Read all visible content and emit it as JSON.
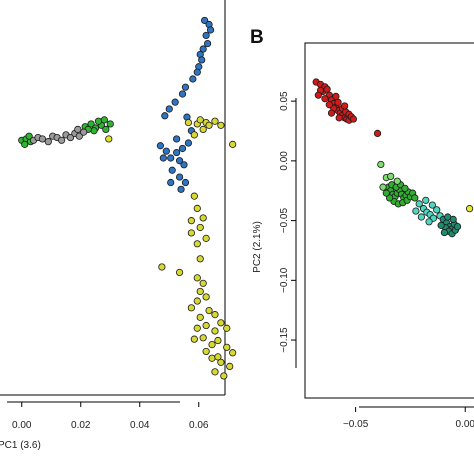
{
  "chart_data": [
    {
      "type": "scatter",
      "panel_label": "",
      "xlabel": "PC1 (3.6)",
      "ylabel": "",
      "xlim": [
        -0.005,
        0.075
      ],
      "ylim": [
        -0.2,
        0.09
      ],
      "x_ticks": [
        "0.00",
        "0.02",
        "0.04",
        "0.06"
      ],
      "x_tick_values": [
        0.0,
        0.02,
        0.04,
        0.06
      ],
      "y_ticks": [],
      "grid": false,
      "series": [
        {
          "color": "#2e74c0",
          "points": [
            [
              0.062,
              0.075
            ],
            [
              0.0635,
              0.072
            ],
            [
              0.064,
              0.068
            ],
            [
              0.0625,
              0.064
            ],
            [
              0.063,
              0.058
            ],
            [
              0.0615,
              0.054
            ],
            [
              0.0605,
              0.05
            ],
            [
              0.061,
              0.046
            ],
            [
              0.06,
              0.041
            ],
            [
              0.0595,
              0.037
            ],
            [
              0.058,
              0.032
            ],
            [
              0.0555,
              0.026
            ],
            [
              0.0545,
              0.021
            ],
            [
              0.052,
              0.015
            ],
            [
              0.05,
              0.01
            ],
            [
              0.0485,
              0.005
            ],
            [
              0.056,
              0.004
            ],
            [
              0.0575,
              -0.006
            ],
            [
              0.0565,
              -0.015
            ],
            [
              0.0545,
              -0.019
            ],
            [
              0.0525,
              -0.022
            ],
            [
              0.0505,
              -0.026
            ],
            [
              0.049,
              -0.021
            ],
            [
              0.0535,
              -0.028
            ],
            [
              0.055,
              -0.031
            ],
            [
              0.047,
              -0.017
            ],
            [
              0.051,
              -0.035
            ],
            [
              0.0535,
              -0.04
            ],
            [
              0.0555,
              -0.044
            ],
            [
              0.054,
              -0.049
            ],
            [
              0.0505,
              -0.044
            ],
            [
              0.0525,
              -0.012
            ],
            [
              0.048,
              -0.026
            ]
          ]
        },
        {
          "color": "#d8d832",
          "points": [
            [
              0.0565,
              0.0
            ],
            [
              0.0595,
              -0.001
            ],
            [
              0.0625,
              0.0
            ],
            [
              0.0655,
              0.001
            ],
            [
              0.0605,
              0.002
            ],
            [
              0.0635,
              -0.002
            ],
            [
              0.0585,
              -0.009
            ],
            [
              0.0615,
              -0.005
            ],
            [
              0.0675,
              -0.002
            ],
            [
              0.0715,
              -0.016
            ],
            [
              0.0575,
              -0.072
            ],
            [
              0.0595,
              -0.063
            ],
            [
              0.0585,
              -0.054
            ],
            [
              0.0575,
              -0.081
            ],
            [
              0.0605,
              -0.077
            ],
            [
              0.0615,
              -0.07
            ],
            [
              0.0595,
              -0.089
            ],
            [
              0.0625,
              -0.085
            ],
            [
              0.0605,
              -0.1
            ],
            [
              0.0475,
              -0.106
            ],
            [
              0.0535,
              -0.11
            ],
            [
              0.0595,
              -0.114
            ],
            [
              0.0615,
              -0.118
            ],
            [
              0.0605,
              -0.124
            ],
            [
              0.0595,
              -0.131
            ],
            [
              0.0625,
              -0.128
            ],
            [
              0.0575,
              -0.136
            ],
            [
              0.0605,
              -0.143
            ],
            [
              0.0635,
              -0.138
            ],
            [
              0.0655,
              -0.141
            ],
            [
              0.0595,
              -0.151
            ],
            [
              0.0625,
              -0.149
            ],
            [
              0.0655,
              -0.153
            ],
            [
              0.0675,
              -0.147
            ],
            [
              0.0695,
              -0.151
            ],
            [
              0.0615,
              -0.158
            ],
            [
              0.0645,
              -0.163
            ],
            [
              0.0665,
              -0.16
            ],
            [
              0.0695,
              -0.165
            ],
            [
              0.0715,
              -0.169
            ],
            [
              0.0645,
              -0.173
            ],
            [
              0.0675,
              -0.176
            ],
            [
              0.0705,
              -0.179
            ],
            [
              0.0655,
              -0.183
            ],
            [
              0.0685,
              -0.186
            ],
            [
              0.0665,
              -0.172
            ],
            [
              0.0625,
              -0.168
            ],
            [
              0.0585,
              -0.159
            ]
          ]
        },
        {
          "color": "#2fb52f",
          "points": [
            [
              0.0,
              -0.013
            ],
            [
              0.0015,
              -0.012
            ],
            [
              0.003,
              -0.014
            ],
            [
              0.001,
              -0.016
            ],
            [
              0.0025,
              -0.01
            ],
            [
              0.0215,
              -0.003
            ],
            [
              0.0235,
              -0.001
            ],
            [
              0.025,
              -0.004
            ],
            [
              0.027,
              -0.002
            ],
            [
              0.0285,
              -0.005
            ],
            [
              0.03,
              -0.001
            ],
            [
              0.026,
              0.001
            ],
            [
              0.028,
              0.002
            ],
            [
              0.0245,
              -0.006
            ],
            [
              0.0225,
              -0.005
            ]
          ]
        },
        {
          "color": "#9a9a9a",
          "points": [
            [
              0.004,
              -0.013
            ],
            [
              0.0055,
              -0.011
            ],
            [
              0.007,
              -0.012
            ],
            [
              0.009,
              -0.014
            ],
            [
              0.0105,
              -0.01
            ],
            [
              0.012,
              -0.011
            ],
            [
              0.0135,
              -0.013
            ],
            [
              0.015,
              -0.009
            ],
            [
              0.0165,
              -0.011
            ],
            [
              0.018,
              -0.008
            ],
            [
              0.0195,
              -0.01
            ],
            [
              0.021,
              -0.007
            ],
            [
              0.019,
              -0.005
            ]
          ]
        },
        {
          "color": "#e2e22a",
          "points": [
            [
              0.0295,
              -0.012
            ]
          ]
        }
      ]
    },
    {
      "type": "scatter",
      "panel_label": "B",
      "xlabel": "",
      "ylabel": "PC2 (2.1%)",
      "xlim": [
        -0.074,
        0.004
      ],
      "ylim": [
        -0.196,
        0.097
      ],
      "x_ticks": [
        "−0.05",
        "0.00"
      ],
      "x_tick_values": [
        -0.05,
        0.0
      ],
      "y_ticks": [
        "0.05",
        "0.00",
        "−0.05",
        "−0.10",
        "−0.15"
      ],
      "y_tick_values": [
        0.05,
        0.0,
        -0.05,
        -0.1,
        -0.15
      ],
      "grid": false,
      "series": [
        {
          "color": "#d11a1a",
          "points": [
            [
              -0.068,
              0.066
            ],
            [
              -0.066,
              0.064
            ],
            [
              -0.064,
              0.062
            ],
            [
              -0.065,
              0.058
            ],
            [
              -0.063,
              0.06
            ],
            [
              -0.062,
              0.055
            ],
            [
              -0.061,
              0.051
            ],
            [
              -0.06,
              0.048
            ],
            [
              -0.059,
              0.045
            ],
            [
              -0.058,
              0.042
            ],
            [
              -0.057,
              0.04
            ],
            [
              -0.056,
              0.038
            ],
            [
              -0.055,
              0.036
            ],
            [
              -0.054,
              0.035
            ],
            [
              -0.053,
              0.034
            ],
            [
              -0.06,
              0.044
            ],
            [
              -0.062,
              0.047
            ],
            [
              -0.064,
              0.052
            ],
            [
              -0.058,
              0.049
            ],
            [
              -0.056,
              0.044
            ],
            [
              -0.0575,
              0.036
            ],
            [
              -0.0545,
              0.041
            ],
            [
              -0.053,
              0.039
            ],
            [
              -0.061,
              0.04
            ],
            [
              -0.066,
              0.059
            ],
            [
              -0.067,
              0.055
            ],
            [
              -0.059,
              0.054
            ],
            [
              -0.055,
              0.046
            ],
            [
              -0.052,
              0.037
            ],
            [
              -0.051,
              0.035
            ],
            [
              -0.04,
              0.023
            ]
          ]
        },
        {
          "color": "#2fae2f",
          "points": [
            [
              -0.035,
              -0.022
            ],
            [
              -0.034,
              -0.025
            ],
            [
              -0.033,
              -0.028
            ],
            [
              -0.032,
              -0.03
            ],
            [
              -0.031,
              -0.027
            ],
            [
              -0.03,
              -0.024
            ],
            [
              -0.029,
              -0.028
            ],
            [
              -0.028,
              -0.031
            ],
            [
              -0.027,
              -0.029
            ],
            [
              -0.026,
              -0.026
            ],
            [
              -0.0325,
              -0.034
            ],
            [
              -0.0305,
              -0.036
            ],
            [
              -0.0285,
              -0.035
            ],
            [
              -0.0265,
              -0.033
            ],
            [
              -0.025,
              -0.03
            ],
            [
              -0.0345,
              -0.031
            ],
            [
              -0.0335,
              -0.02
            ],
            [
              -0.0315,
              -0.022
            ],
            [
              -0.0295,
              -0.02
            ],
            [
              -0.036,
              -0.027
            ],
            [
              -0.0275,
              -0.023
            ],
            [
              -0.024,
              -0.027
            ],
            [
              -0.023,
              -0.031
            ]
          ]
        },
        {
          "color": "#7fdc6f",
          "points": [
            [
              -0.0385,
              -0.003
            ],
            [
              -0.036,
              -0.014
            ],
            [
              -0.034,
              -0.013
            ],
            [
              -0.031,
              -0.017
            ],
            [
              -0.0375,
              -0.022
            ]
          ]
        },
        {
          "color": "#4ed6c0",
          "points": [
            [
              -0.021,
              -0.036
            ],
            [
              -0.019,
              -0.04
            ],
            [
              -0.0175,
              -0.043
            ],
            [
              -0.016,
              -0.045
            ],
            [
              -0.0145,
              -0.048
            ],
            [
              -0.018,
              -0.033
            ],
            [
              -0.015,
              -0.037
            ],
            [
              -0.013,
              -0.041
            ],
            [
              -0.02,
              -0.047
            ],
            [
              -0.0225,
              -0.042
            ],
            [
              -0.0115,
              -0.046
            ],
            [
              -0.0165,
              -0.051
            ]
          ]
        },
        {
          "color": "#1e8a6e",
          "points": [
            [
              -0.01,
              -0.049
            ],
            [
              -0.0085,
              -0.052
            ],
            [
              -0.007,
              -0.055
            ],
            [
              -0.006,
              -0.057
            ],
            [
              -0.005,
              -0.053
            ],
            [
              -0.009,
              -0.056
            ],
            [
              -0.0075,
              -0.059
            ],
            [
              -0.006,
              -0.061
            ],
            [
              -0.0045,
              -0.058
            ],
            [
              -0.011,
              -0.054
            ],
            [
              -0.0095,
              -0.06
            ],
            [
              -0.0035,
              -0.055
            ],
            [
              -0.0055,
              -0.049
            ],
            [
              -0.008,
              -0.047
            ]
          ]
        },
        {
          "color": "#e8e83a",
          "points": [
            [
              0.002,
              -0.04
            ]
          ]
        }
      ]
    }
  ]
}
